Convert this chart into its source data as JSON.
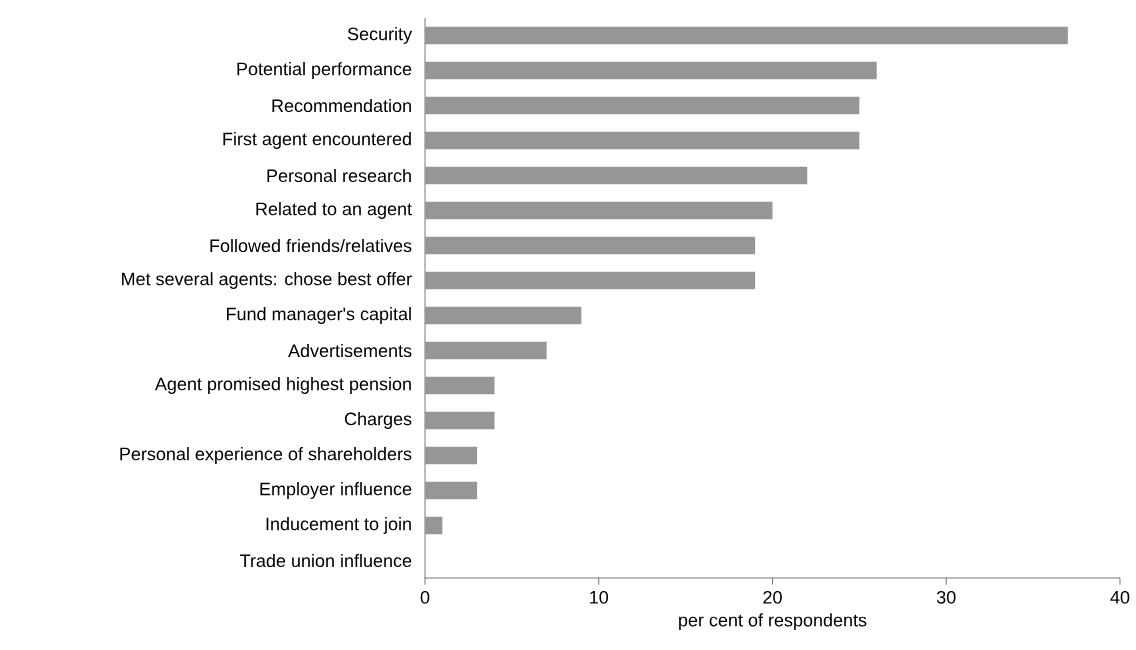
{
  "chart_data": {
    "type": "bar",
    "orientation": "horizontal",
    "xlabel": "per cent of respondents",
    "categories": [
      "Security",
      "Potential performance",
      "Recommendation",
      "First agent encountered",
      "Personal research",
      "Related to an agent",
      "Followed friends/relatives",
      "Met several agents: chose best offer",
      "Fund manager's capital",
      "Advertisements",
      "Agent promised highest pension",
      "Charges",
      "Personal experience of shareholders",
      "Employer influence",
      "Inducement to join",
      "Trade union influence"
    ],
    "values": [
      37,
      26,
      25,
      25,
      22,
      20,
      19,
      19,
      9,
      7,
      4,
      4,
      3,
      3,
      1,
      0
    ],
    "color": "#969696",
    "xlim": [
      0,
      40
    ],
    "xticks": [
      0,
      10,
      20,
      30,
      40
    ]
  }
}
